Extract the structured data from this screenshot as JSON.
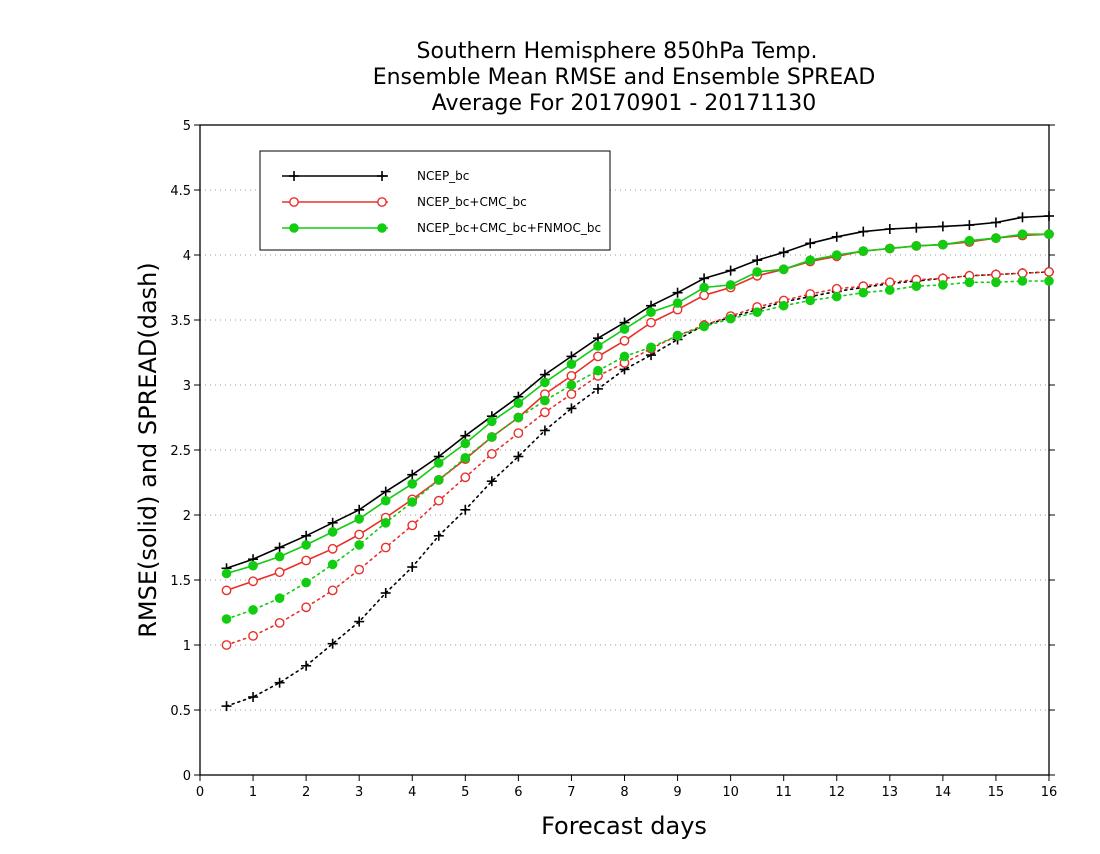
{
  "chart_data": {
    "type": "line",
    "title": [
      "Southern Hemisphere 850hPa Temp.",
      "Ensemble Mean RMSE and Ensemble SPREAD",
      "Average For 20170901 - 20171130"
    ],
    "xlabel": "Forecast days",
    "ylabel": "RMSE(solid) and SPREAD(dash)",
    "xlim": [
      0,
      16
    ],
    "ylim": [
      0,
      5
    ],
    "xticks": [
      0,
      1,
      2,
      3,
      4,
      5,
      6,
      7,
      8,
      9,
      10,
      11,
      12,
      13,
      14,
      15,
      16
    ],
    "yticks": [
      0,
      0.5,
      1,
      1.5,
      2,
      2.5,
      3,
      3.5,
      4,
      4.5,
      5
    ],
    "grid": "horizontal dotted",
    "legend_position": "top-left",
    "x": [
      0.5,
      1,
      1.5,
      2,
      2.5,
      3,
      3.5,
      4,
      4.5,
      5,
      5.5,
      6,
      6.5,
      7,
      7.5,
      8,
      8.5,
      9,
      9.5,
      10,
      10.5,
      11,
      11.5,
      12,
      12.5,
      13,
      13.5,
      14,
      14.5,
      15,
      15.5,
      16
    ],
    "series": [
      {
        "name": "NCEP_bc",
        "color": "#000000",
        "marker": "plus",
        "rmse": [
          1.59,
          1.66,
          1.75,
          1.84,
          1.94,
          2.04,
          2.18,
          2.31,
          2.45,
          2.61,
          2.76,
          2.91,
          3.08,
          3.22,
          3.36,
          3.48,
          3.61,
          3.71,
          3.82,
          3.88,
          3.96,
          4.02,
          4.09,
          4.14,
          4.18,
          4.2,
          4.21,
          4.22,
          4.23,
          4.25,
          4.29,
          4.3
        ],
        "spread": [
          0.53,
          0.6,
          0.71,
          0.84,
          1.01,
          1.18,
          1.4,
          1.6,
          1.84,
          2.04,
          2.26,
          2.45,
          2.65,
          2.82,
          2.97,
          3.12,
          3.23,
          3.35,
          3.46,
          3.52,
          3.58,
          3.64,
          3.68,
          3.72,
          3.75,
          3.78,
          3.8,
          3.82,
          3.84,
          3.85,
          3.86,
          3.87
        ]
      },
      {
        "name": "NCEP_bc+CMC_bc",
        "color": "#e8302a",
        "marker": "open-circle",
        "rmse": [
          1.42,
          1.49,
          1.56,
          1.65,
          1.74,
          1.85,
          1.98,
          2.12,
          2.27,
          2.43,
          2.6,
          2.75,
          2.93,
          3.07,
          3.22,
          3.34,
          3.48,
          3.58,
          3.69,
          3.75,
          3.84,
          3.89,
          3.95,
          3.99,
          4.03,
          4.05,
          4.07,
          4.08,
          4.1,
          4.13,
          4.15,
          4.16
        ],
        "spread": [
          1.0,
          1.07,
          1.17,
          1.29,
          1.42,
          1.58,
          1.75,
          1.92,
          2.11,
          2.29,
          2.47,
          2.63,
          2.79,
          2.93,
          3.07,
          3.17,
          3.28,
          3.38,
          3.46,
          3.53,
          3.6,
          3.65,
          3.7,
          3.74,
          3.76,
          3.79,
          3.81,
          3.82,
          3.84,
          3.85,
          3.86,
          3.87
        ]
      },
      {
        "name": "NCEP_bc+CMC_bc+FNMOC_bc",
        "color": "#11cc11",
        "marker": "filled-circle",
        "rmse": [
          1.55,
          1.61,
          1.68,
          1.77,
          1.87,
          1.97,
          2.11,
          2.24,
          2.4,
          2.55,
          2.72,
          2.86,
          3.02,
          3.16,
          3.3,
          3.43,
          3.56,
          3.63,
          3.75,
          3.77,
          3.87,
          3.89,
          3.96,
          4.0,
          4.03,
          4.05,
          4.07,
          4.08,
          4.11,
          4.13,
          4.16,
          4.16
        ],
        "spread": [
          1.2,
          1.27,
          1.36,
          1.48,
          1.62,
          1.77,
          1.94,
          2.1,
          2.27,
          2.44,
          2.6,
          2.75,
          2.88,
          3.0,
          3.11,
          3.22,
          3.29,
          3.38,
          3.45,
          3.51,
          3.56,
          3.61,
          3.65,
          3.68,
          3.71,
          3.73,
          3.76,
          3.77,
          3.79,
          3.79,
          3.8,
          3.8
        ]
      }
    ]
  }
}
